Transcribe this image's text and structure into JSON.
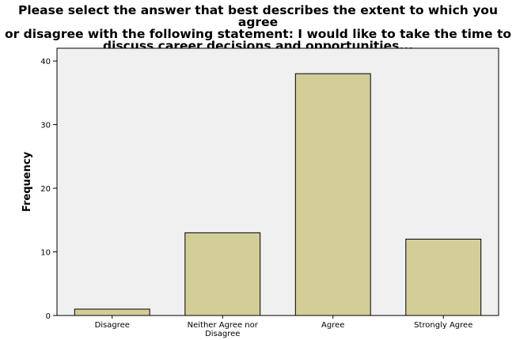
{
  "chart_data": {
    "type": "bar",
    "title": "Please select the answer that best describes the extent to which you agree\nor disagree with the following statement:    I would like to take the time to\ndiscuss career decisions and  opportunities...",
    "xlabel": "",
    "ylabel": "Frequency",
    "categories": [
      "Disagree",
      "Neither Agree nor Disagree",
      "Agree",
      "Strongly Agree"
    ],
    "category_label_lines": [
      [
        "Disagree"
      ],
      [
        "Neither Agree nor",
        "Disagree"
      ],
      [
        "Agree"
      ],
      [
        "Strongly Agree"
      ]
    ],
    "values": [
      1,
      13,
      38,
      12
    ],
    "ylim": [
      0,
      42
    ],
    "yticks": [
      0,
      10,
      20,
      30,
      40
    ],
    "grid": false,
    "colors": {
      "bar_fill": "#d3ce98",
      "bar_stroke": "#000000",
      "plot_background": "#f0f0f0",
      "frame": "#000000"
    }
  }
}
